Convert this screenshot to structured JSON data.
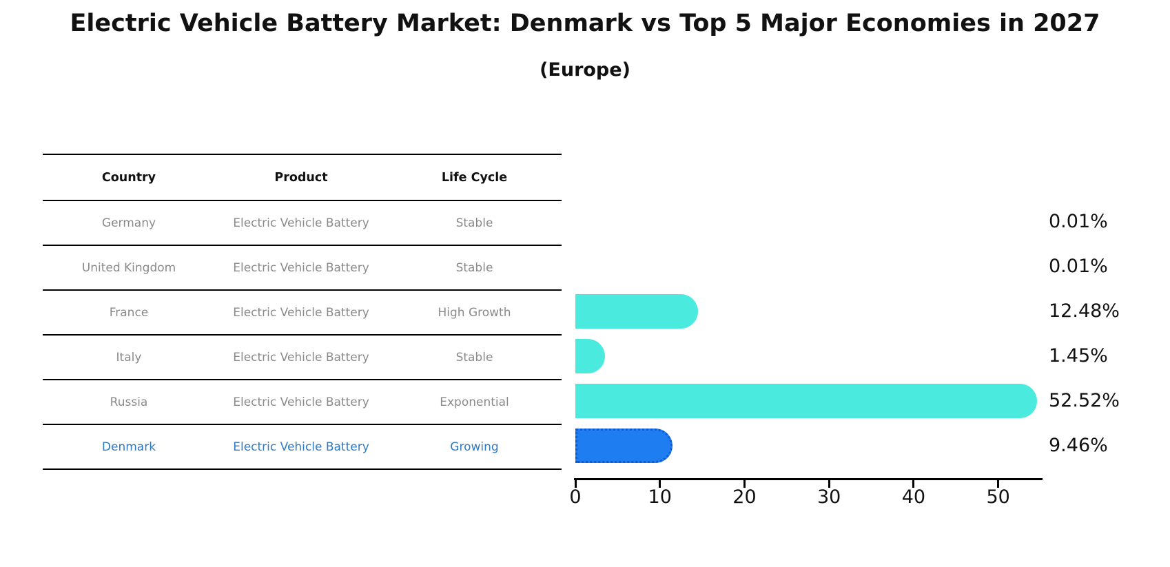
{
  "title": "Electric Vehicle Battery Market: Denmark vs Top 5 Major Economies in 2027",
  "subtitle": "(Europe)",
  "table": {
    "headers": [
      "Country",
      "Product",
      "Life Cycle"
    ],
    "rows": [
      {
        "country": "Germany",
        "product": "Electric Vehicle Battery",
        "life_cycle": "Stable",
        "highlighted": false
      },
      {
        "country": "United Kingdom",
        "product": "Electric Vehicle Battery",
        "life_cycle": "Stable",
        "highlighted": false
      },
      {
        "country": "France",
        "product": "Electric Vehicle Battery",
        "life_cycle": "High Growth",
        "highlighted": false
      },
      {
        "country": "Italy",
        "product": "Electric Vehicle Battery",
        "life_cycle": "Stable",
        "highlighted": false
      },
      {
        "country": "Russia",
        "product": "Electric Vehicle Battery",
        "life_cycle": "Exponential",
        "highlighted": false
      },
      {
        "country": "Denmark",
        "product": "Electric Vehicle Battery",
        "life_cycle": "Growing",
        "highlighted": true
      }
    ]
  },
  "chart_data": {
    "type": "bar",
    "orientation": "horizontal",
    "title": "Electric Vehicle Battery Market: Denmark vs Top 5 Major Economies in 2027 (Europe)",
    "categories": [
      "Germany",
      "United Kingdom",
      "France",
      "Italy",
      "Russia",
      "Denmark"
    ],
    "values": [
      0.01,
      0.01,
      12.48,
      1.45,
      52.52,
      9.46
    ],
    "value_labels": [
      "0.01%",
      "0.01%",
      "12.48%",
      "1.45%",
      "52.52%",
      "9.46%"
    ],
    "xlabel": "",
    "ylabel": "",
    "xlim": [
      0,
      55
    ],
    "x_ticks": [
      0,
      10,
      20,
      30,
      40,
      50
    ],
    "grid": false,
    "legend": false,
    "highlight_index": 5
  },
  "colors": {
    "bar_default": "#4aeadf",
    "bar_highlight": "#1e7df0",
    "highlight_border": "#0d54c9",
    "text_muted": "#8a8a8a",
    "text_highlight": "#2e7bc4",
    "text_main": "#111111"
  }
}
